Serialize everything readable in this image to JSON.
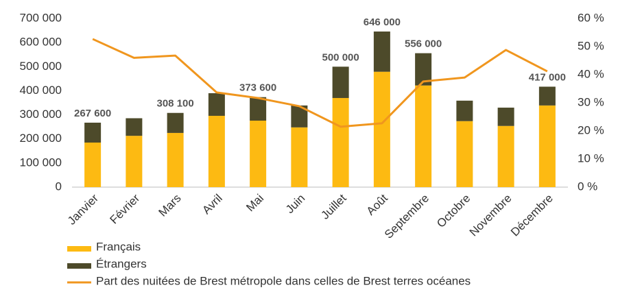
{
  "chart_data": {
    "type": "bar",
    "stacked": true,
    "categories": [
      "Janvier",
      "Février",
      "Mars",
      "Avril",
      "Mai",
      "Juin",
      "Juillet",
      "Août",
      "Septembre",
      "Octobre",
      "Novembre",
      "Décembre"
    ],
    "series": [
      {
        "name": "Français",
        "color": "#FDBA12",
        "values": [
          185000,
          213000,
          225000,
          296000,
          276000,
          248000,
          370000,
          479000,
          422000,
          274000,
          254000,
          339000
        ]
      },
      {
        "name": "Étrangers",
        "color": "#4D4A2A",
        "values": [
          82600,
          73000,
          83100,
          94000,
          97600,
          91000,
          130000,
          167000,
          134000,
          85000,
          76000,
          78000
        ]
      },
      {
        "name": "Part des nuitées de Brest métropole dans celles de Brest terres océanes",
        "color": "#F0961E",
        "type": "line",
        "axis": "y2",
        "values": [
          52.7,
          46,
          46.8,
          33.7,
          31.7,
          28.8,
          21.5,
          22.7,
          37.6,
          39,
          48.8,
          41.2
        ]
      }
    ],
    "total_labels": [
      "267 600",
      null,
      "308 100",
      null,
      "373 600",
      null,
      "500 000",
      "646 000",
      "556 000",
      null,
      null,
      "417 000"
    ],
    "ylim": [
      0,
      700000
    ],
    "yticks": [
      0,
      {
        "value": 100000,
        "label": "100 000"
      },
      {
        "value": 200000,
        "label": "200 000"
      },
      {
        "value": 300000,
        "label": "300 000"
      },
      {
        "value": 400000,
        "label": "400 000"
      },
      {
        "value": 500000,
        "label": "500 000"
      },
      {
        "value": 600000,
        "label": "600 000"
      },
      {
        "value": 700000,
        "label": "700 000"
      }
    ],
    "y2lim": [
      0,
      60
    ],
    "y2ticks": [
      {
        "value": 0,
        "label": "0 %"
      },
      {
        "value": 10,
        "label": "10 %"
      },
      {
        "value": 20,
        "label": "20 %"
      },
      {
        "value": 30,
        "label": "30 %"
      },
      {
        "value": 40,
        "label": "40 %"
      },
      {
        "value": 50,
        "label": "50 %"
      },
      {
        "value": 60,
        "label": "60 %"
      }
    ],
    "grid": false,
    "legend": "bottom"
  }
}
